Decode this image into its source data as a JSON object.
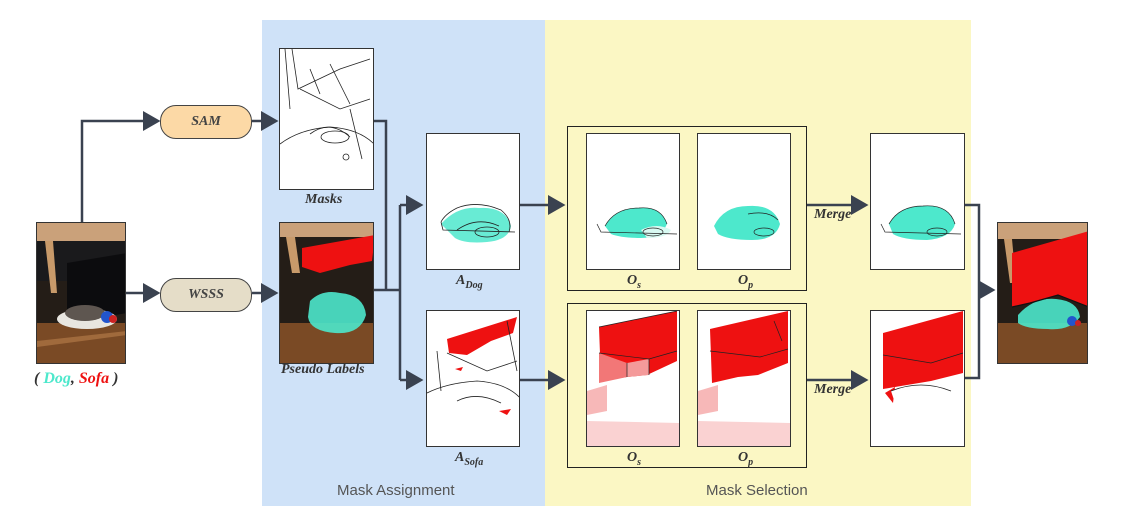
{
  "sections": {
    "assignment": "Mask Assignment",
    "selection": "Mask Selection"
  },
  "nodes": {
    "sam": "SAM",
    "wsss": "WSSS"
  },
  "input": {
    "open": "(",
    "dog": "Dog",
    "comma": ",",
    "sofa": "Sofa",
    "close": ")"
  },
  "captions": {
    "masks": "Masks",
    "pseudo_labels": "Pseudo Labels",
    "a_letter": "A",
    "a_dog_sub": "Dog",
    "a_sofa_sub": "Sofa",
    "o_letter": "O",
    "o_s_sub": "s",
    "o_p_sub": "p",
    "merge": "Merge"
  },
  "colors": {
    "dog": "#4de8cc",
    "sofa": "#ee1111",
    "assignment_bg": "#cfe2f8",
    "selection_bg": "#fbf7c4"
  }
}
